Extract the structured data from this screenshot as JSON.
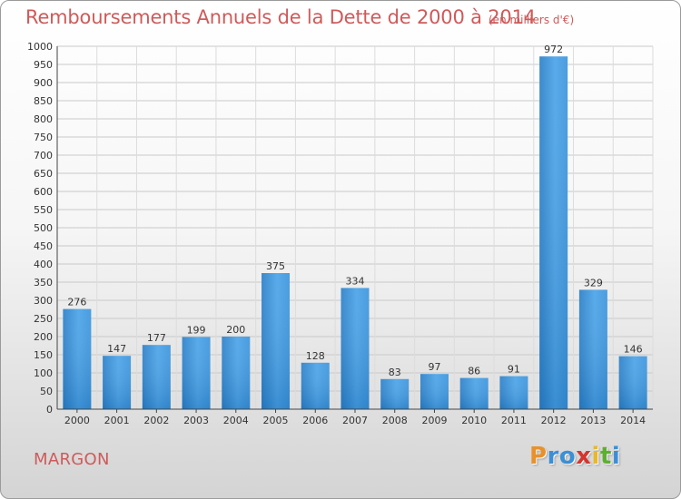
{
  "chart_data": {
    "type": "bar",
    "title": "Remboursements Annuels de la Dette de 2000 à 2014",
    "subtitle": "(en milliers d'€)",
    "categories": [
      "2000",
      "2001",
      "2002",
      "2003",
      "2004",
      "2005",
      "2006",
      "2007",
      "2008",
      "2009",
      "2010",
      "2011",
      "2012",
      "2013",
      "2014"
    ],
    "values": [
      276,
      147,
      177,
      199,
      200,
      375,
      128,
      334,
      83,
      97,
      86,
      91,
      972,
      329,
      146
    ],
    "ylim": [
      0,
      1000
    ],
    "yticks": [
      0,
      50,
      100,
      150,
      200,
      250,
      300,
      350,
      400,
      450,
      500,
      550,
      600,
      650,
      700,
      750,
      800,
      850,
      900,
      950,
      1000
    ],
    "grid": true,
    "bar_color": "#3a94dc"
  },
  "commune": "MARGON",
  "logo": {
    "letters": [
      "P",
      "r",
      "o",
      "x",
      "i",
      "t",
      "i"
    ],
    "colors": [
      "#e8912a",
      "#3a8fd6",
      "#3a8fd6",
      "#d6342e",
      "#e8b82a",
      "#5cb030",
      "#3a8fd6"
    ]
  }
}
